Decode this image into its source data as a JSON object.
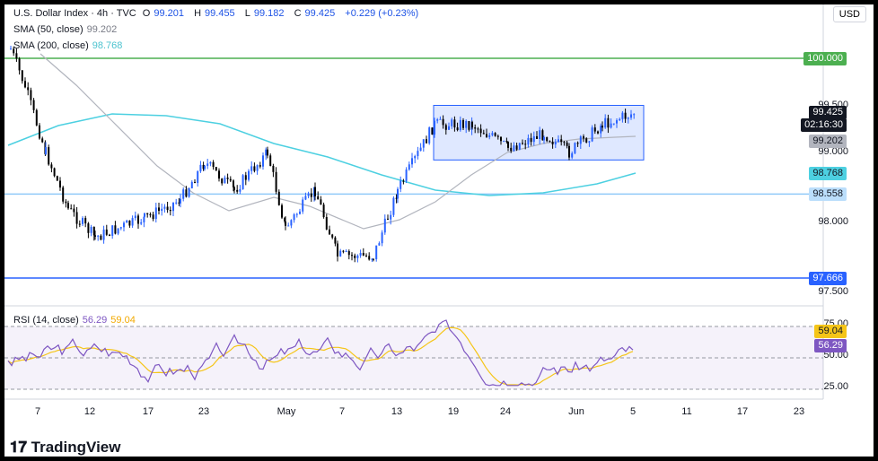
{
  "header": {
    "symbol": "U.S. Dollar Index · 4h · TVC",
    "o_label": "O",
    "o": "99.201",
    "h_label": "H",
    "h": "99.455",
    "l_label": "L",
    "l": "99.182",
    "c_label": "C",
    "c": "99.425",
    "change": "+0.229 (+0.23%)",
    "sma50_label": "SMA (50, close)",
    "sma50_value": "99.202",
    "sma200_label": "SMA (200, close)",
    "sma200_value": "98.768",
    "rsi_label": "RSI (14, close)",
    "rsi_value": "56.29",
    "rsi_ma_value": "59.04"
  },
  "currency_button": "USD",
  "price_labels": {
    "resistance": "100.000",
    "last_price": "99.425",
    "countdown": "02:16:30",
    "sma50": "99.202",
    "sma200": "98.768",
    "support_mid": "98.558",
    "support_low": "97.666"
  },
  "price_scale": [
    "99.500",
    "99.000",
    "98.000",
    "97.500"
  ],
  "rsi_scale": [
    "75.00",
    "50.00",
    "25.00"
  ],
  "x_ticks": [
    "7",
    "12",
    "17",
    "23",
    "May",
    "7",
    "13",
    "19",
    "24",
    "Jun",
    "5",
    "11",
    "17",
    "23"
  ],
  "logo": "TradingView",
  "colors": {
    "up": "#2962ff",
    "down": "#000000",
    "sma50": "#b2b5be",
    "sma200": "#4dd0e1",
    "rsi": "#7e57c2",
    "rsi_ma": "#f5c518",
    "box": "#2962ff",
    "resistance": "#4caf50",
    "support": "#2962ff"
  },
  "chart_data": {
    "type": "candlestick",
    "instrument": "U.S. Dollar Index",
    "timeframe": "4h",
    "y_ticks": [
      99.5,
      99.0,
      98.0,
      97.5
    ],
    "horizontal_levels": [
      100.0,
      98.558,
      97.666
    ],
    "range_box": {
      "from": "May 16",
      "to": "Jun 5",
      "low": 98.92,
      "high": 99.5
    },
    "rsi_levels": [
      75,
      50,
      25
    ],
    "close_path": [
      {
        "x": "Apr 3",
        "y": 100.1
      },
      {
        "x": "Apr 5",
        "y": 99.7
      },
      {
        "x": "Apr 7",
        "y": 99.0
      },
      {
        "x": "Apr 10",
        "y": 98.4
      },
      {
        "x": "Apr 13",
        "y": 98.1
      },
      {
        "x": "Apr 17",
        "y": 98.3
      },
      {
        "x": "Apr 21",
        "y": 98.5
      },
      {
        "x": "Apr 23",
        "y": 98.9
      },
      {
        "x": "Apr 25",
        "y": 98.6
      },
      {
        "x": "Apr 28",
        "y": 99.0
      },
      {
        "x": "May 1",
        "y": 98.2
      },
      {
        "x": "May 5",
        "y": 98.6
      },
      {
        "x": "May 7",
        "y": 97.9
      },
      {
        "x": "May 10",
        "y": 97.9
      },
      {
        "x": "May 13",
        "y": 98.6
      },
      {
        "x": "May 16",
        "y": 99.3
      },
      {
        "x": "May 20",
        "y": 99.3
      },
      {
        "x": "May 24",
        "y": 99.05
      },
      {
        "x": "May 28",
        "y": 99.2
      },
      {
        "x": "May 31",
        "y": 99.0
      },
      {
        "x": "Jun 3",
        "y": 99.3
      },
      {
        "x": "Jun 5",
        "y": 99.425
      }
    ],
    "sma50_last": 99.202,
    "sma200_last": 98.768,
    "rsi_last": 56.29,
    "rsi_ma_last": 59.04
  }
}
